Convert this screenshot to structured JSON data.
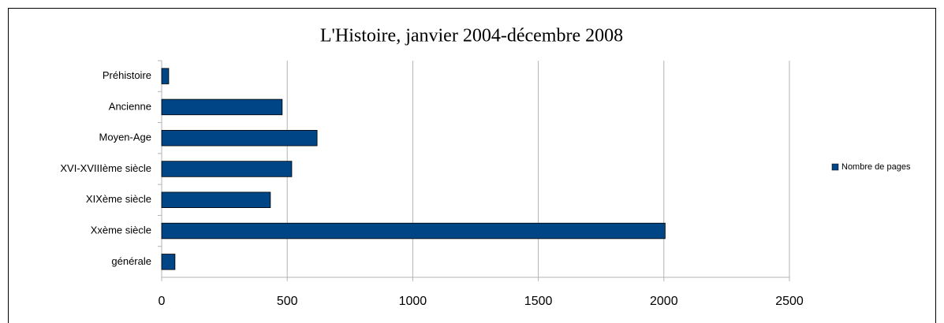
{
  "chart_data": {
    "type": "bar",
    "orientation": "horizontal",
    "title": "L'Histoire, janvier 2004-décembre 2008",
    "categories": [
      "Préhistoire",
      "Ancienne",
      "Moyen-Age",
      "XVI-XVIIIème siècle",
      "XIXème siècle",
      "Xxème siècle",
      "générale"
    ],
    "series": [
      {
        "name": "Nombre de pages",
        "color": "#004586",
        "values": [
          28,
          480,
          619,
          518,
          433,
          2005,
          53
        ]
      }
    ],
    "xlim": [
      0,
      2500
    ],
    "xticks": [
      0,
      500,
      1000,
      1500,
      2000,
      2500
    ],
    "grid": true,
    "legend": "right"
  }
}
